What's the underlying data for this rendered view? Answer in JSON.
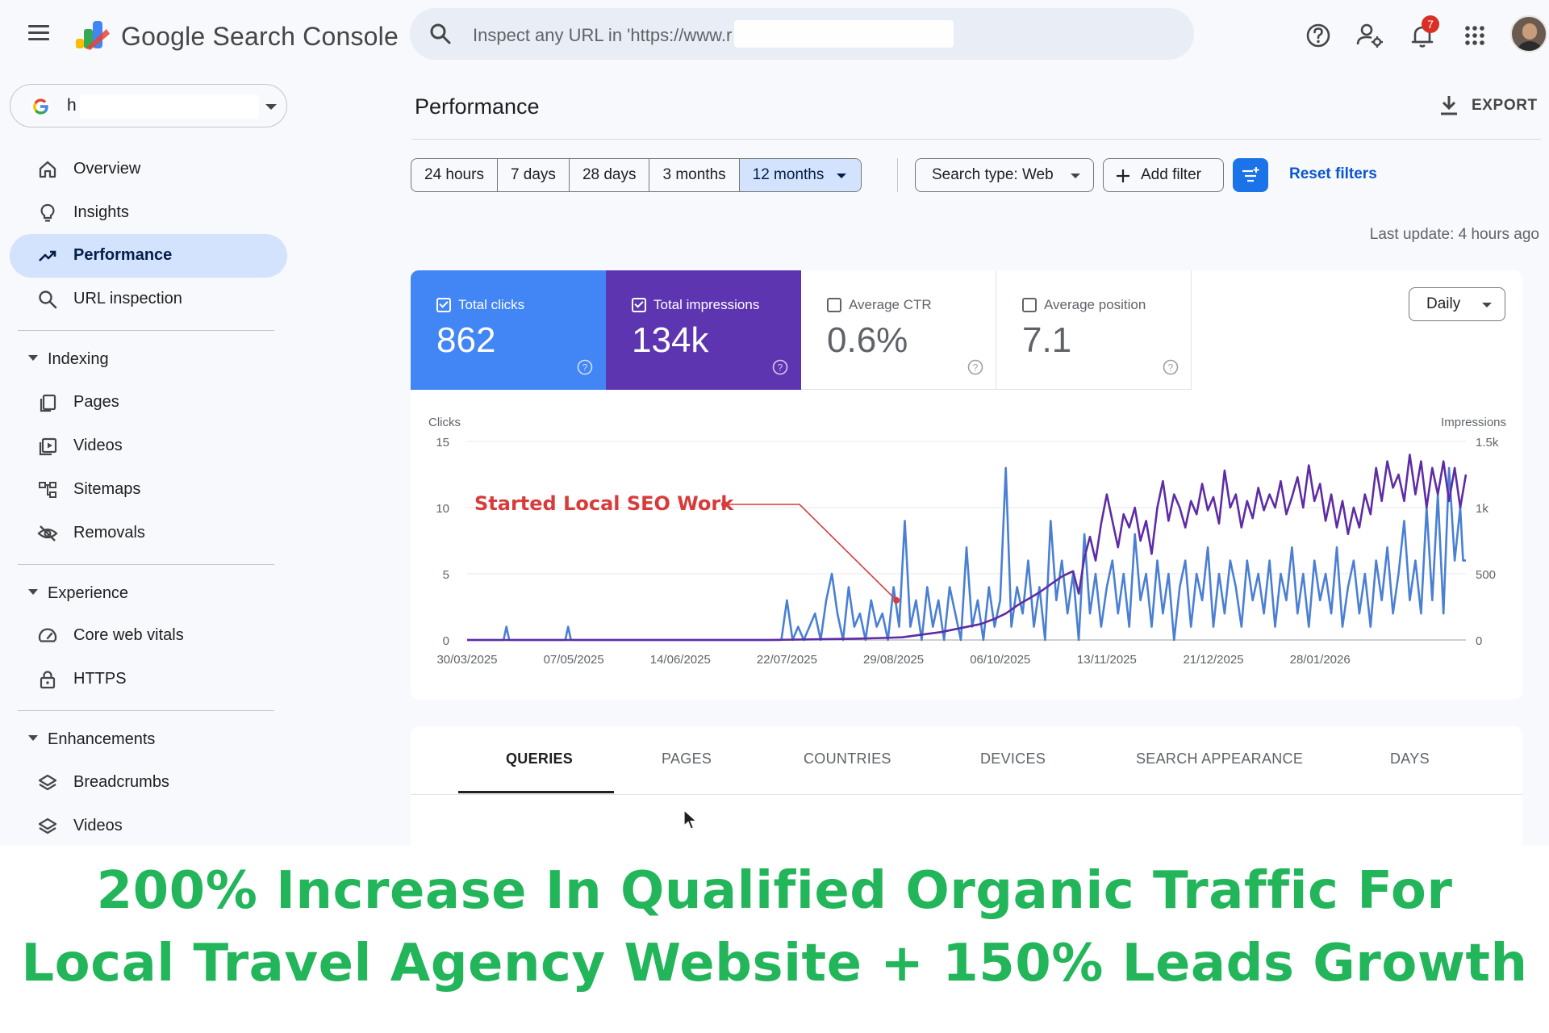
{
  "app": {
    "title": "Google Search Console",
    "search_placeholder": "Inspect any URL in 'https://www.r",
    "notification_count": "7"
  },
  "property": {
    "text": "h"
  },
  "sidebar": {
    "top_items": [
      {
        "label": "Overview",
        "icon": "home-icon"
      },
      {
        "label": "Insights",
        "icon": "lightbulb-icon"
      },
      {
        "label": "Performance",
        "icon": "trending-up-icon",
        "active": true
      },
      {
        "label": "URL inspection",
        "icon": "search-icon"
      }
    ],
    "sections": [
      {
        "title": "Indexing",
        "items": [
          {
            "label": "Pages",
            "icon": "pages-icon"
          },
          {
            "label": "Videos",
            "icon": "video-icon"
          },
          {
            "label": "Sitemaps",
            "icon": "sitemap-icon"
          },
          {
            "label": "Removals",
            "icon": "eye-off-icon"
          }
        ]
      },
      {
        "title": "Experience",
        "items": [
          {
            "label": "Core web vitals",
            "icon": "gauge-icon"
          },
          {
            "label": "HTTPS",
            "icon": "lock-icon"
          }
        ]
      },
      {
        "title": "Enhancements",
        "items": [
          {
            "label": "Breadcrumbs",
            "icon": "layers-icon"
          },
          {
            "label": "Videos",
            "icon": "layers-icon"
          }
        ]
      }
    ]
  },
  "main": {
    "page_title": "Performance",
    "export_label": "EXPORT",
    "ranges": [
      "24 hours",
      "7 days",
      "28 days",
      "3 months",
      "12 months"
    ],
    "selected_range": "12 months",
    "search_type": "Search type: Web",
    "add_filter": "Add filter",
    "reset_filters": "Reset filters",
    "last_update": "Last update: 4 hours ago",
    "granularity": "Daily"
  },
  "metrics": [
    {
      "label": "Total clicks",
      "value": "862",
      "checked": true,
      "color": "#4285f4"
    },
    {
      "label": "Total impressions",
      "value": "134k",
      "checked": true,
      "color": "#5e35b1"
    },
    {
      "label": "Average CTR",
      "value": "0.6%",
      "checked": false
    },
    {
      "label": "Average position",
      "value": "7.1",
      "checked": false
    }
  ],
  "chart_data": {
    "type": "line",
    "ylabel_left": "Clicks",
    "ylabel_right": "Impressions",
    "y_left_ticks": [
      "0",
      "5",
      "10",
      "15"
    ],
    "y_right_ticks": [
      "0",
      "500",
      "1k",
      "1.5k"
    ],
    "ylim_left": [
      0,
      15
    ],
    "ylim_right": [
      0,
      1500
    ],
    "x_ticks": [
      "30/03/2025",
      "07/05/2025",
      "14/06/2025",
      "22/07/2025",
      "29/08/2025",
      "06/10/2025",
      "13/11/2025",
      "21/12/2025",
      "28/01/2026"
    ],
    "x_range": [
      "2025-03-30",
      "2026-03-21"
    ],
    "annotation": {
      "text": "Started  Local SEO Work",
      "date": "2025-08-30",
      "value": 3
    },
    "grid": true,
    "series": [
      {
        "name": "Total clicks",
        "color": "#4a7fd4",
        "axis": "left",
        "points": [
          [
            "2025-03-30",
            0
          ],
          [
            "2025-04-12",
            0
          ],
          [
            "2025-04-13",
            1
          ],
          [
            "2025-04-14",
            0
          ],
          [
            "2025-05-04",
            0
          ],
          [
            "2025-05-05",
            1
          ],
          [
            "2025-05-06",
            0
          ],
          [
            "2025-07-20",
            0
          ],
          [
            "2025-07-22",
            3
          ],
          [
            "2025-07-24",
            0
          ],
          [
            "2025-07-26",
            1
          ],
          [
            "2025-07-28",
            0
          ],
          [
            "2025-07-30",
            1
          ],
          [
            "2025-08-01",
            2
          ],
          [
            "2025-08-03",
            0
          ],
          [
            "2025-08-05",
            3
          ],
          [
            "2025-08-07",
            5
          ],
          [
            "2025-08-09",
            2
          ],
          [
            "2025-08-11",
            0
          ],
          [
            "2025-08-13",
            4
          ],
          [
            "2025-08-15",
            1
          ],
          [
            "2025-08-17",
            2
          ],
          [
            "2025-08-19",
            0
          ],
          [
            "2025-08-21",
            3
          ],
          [
            "2025-08-23",
            1
          ],
          [
            "2025-08-25",
            2
          ],
          [
            "2025-08-27",
            0
          ],
          [
            "2025-08-29",
            4
          ],
          [
            "2025-08-31",
            1
          ],
          [
            "2025-09-02",
            9
          ],
          [
            "2025-09-04",
            1
          ],
          [
            "2025-09-06",
            3
          ],
          [
            "2025-09-08",
            0
          ],
          [
            "2025-09-10",
            4
          ],
          [
            "2025-09-12",
            1
          ],
          [
            "2025-09-14",
            3
          ],
          [
            "2025-09-16",
            0
          ],
          [
            "2025-09-18",
            4
          ],
          [
            "2025-09-20",
            2
          ],
          [
            "2025-09-22",
            0
          ],
          [
            "2025-09-24",
            7
          ],
          [
            "2025-09-26",
            1
          ],
          [
            "2025-09-28",
            3
          ],
          [
            "2025-09-30",
            0
          ],
          [
            "2025-10-02",
            4
          ],
          [
            "2025-10-04",
            1
          ],
          [
            "2025-10-06",
            3
          ],
          [
            "2025-10-08",
            13
          ],
          [
            "2025-10-10",
            1
          ],
          [
            "2025-10-12",
            4
          ],
          [
            "2025-10-14",
            2
          ],
          [
            "2025-10-16",
            6
          ],
          [
            "2025-10-18",
            1
          ],
          [
            "2025-10-20",
            4
          ],
          [
            "2025-10-22",
            0
          ],
          [
            "2025-10-24",
            9
          ],
          [
            "2025-10-26",
            3
          ],
          [
            "2025-10-28",
            6
          ],
          [
            "2025-10-30",
            2
          ],
          [
            "2025-11-01",
            5
          ],
          [
            "2025-11-03",
            0
          ],
          [
            "2025-11-05",
            8
          ],
          [
            "2025-11-07",
            2
          ],
          [
            "2025-11-09",
            5
          ],
          [
            "2025-11-11",
            1
          ],
          [
            "2025-11-13",
            4
          ],
          [
            "2025-11-15",
            6
          ],
          [
            "2025-11-17",
            2
          ],
          [
            "2025-11-19",
            5
          ],
          [
            "2025-11-21",
            1
          ],
          [
            "2025-11-23",
            8
          ],
          [
            "2025-11-25",
            3
          ],
          [
            "2025-11-27",
            5
          ],
          [
            "2025-11-29",
            1
          ],
          [
            "2025-12-01",
            6
          ],
          [
            "2025-12-03",
            2
          ],
          [
            "2025-12-05",
            5
          ],
          [
            "2025-12-07",
            0
          ],
          [
            "2025-12-09",
            4
          ],
          [
            "2025-12-11",
            6
          ],
          [
            "2025-12-13",
            1
          ],
          [
            "2025-12-15",
            5
          ],
          [
            "2025-12-17",
            3
          ],
          [
            "2025-12-19",
            7
          ],
          [
            "2025-12-21",
            1
          ],
          [
            "2025-12-23",
            5
          ],
          [
            "2025-12-25",
            2
          ],
          [
            "2025-12-27",
            6
          ],
          [
            "2025-12-29",
            4
          ],
          [
            "2025-12-31",
            1
          ],
          [
            "2026-01-02",
            6
          ],
          [
            "2026-01-04",
            3
          ],
          [
            "2026-01-06",
            5
          ],
          [
            "2026-01-08",
            2
          ],
          [
            "2026-01-10",
            6
          ],
          [
            "2026-01-12",
            1
          ],
          [
            "2026-01-14",
            5
          ],
          [
            "2026-01-16",
            3
          ],
          [
            "2026-01-18",
            7
          ],
          [
            "2026-01-20",
            2
          ],
          [
            "2026-01-22",
            5
          ],
          [
            "2026-01-24",
            1
          ],
          [
            "2026-01-26",
            6
          ],
          [
            "2026-01-28",
            3
          ],
          [
            "2026-01-30",
            5
          ],
          [
            "2026-02-01",
            2
          ],
          [
            "2026-02-03",
            7
          ],
          [
            "2026-02-05",
            1
          ],
          [
            "2026-02-07",
            4
          ],
          [
            "2026-02-09",
            6
          ],
          [
            "2026-02-11",
            2
          ],
          [
            "2026-02-13",
            5
          ],
          [
            "2026-02-15",
            1
          ],
          [
            "2026-02-17",
            6
          ],
          [
            "2026-02-19",
            3
          ],
          [
            "2026-02-21",
            7
          ],
          [
            "2026-02-23",
            2
          ],
          [
            "2026-02-25",
            5
          ],
          [
            "2026-02-27",
            9
          ],
          [
            "2026-03-01",
            3
          ],
          [
            "2026-03-03",
            6
          ],
          [
            "2026-03-05",
            2
          ],
          [
            "2026-03-07",
            10
          ],
          [
            "2026-03-09",
            3
          ],
          [
            "2026-03-11",
            11
          ],
          [
            "2026-03-13",
            2
          ],
          [
            "2026-03-15",
            13
          ],
          [
            "2026-03-17",
            6
          ],
          [
            "2026-03-19",
            10
          ],
          [
            "2026-03-20",
            6
          ],
          [
            "2026-03-21",
            6
          ]
        ]
      },
      {
        "name": "Total impressions",
        "color": "#5e2ca5",
        "axis": "right",
        "points": [
          [
            "2025-03-30",
            0
          ],
          [
            "2025-07-15",
            0
          ],
          [
            "2025-08-01",
            5
          ],
          [
            "2025-08-15",
            10
          ],
          [
            "2025-08-25",
            15
          ],
          [
            "2025-09-01",
            20
          ],
          [
            "2025-09-08",
            40
          ],
          [
            "2025-09-15",
            60
          ],
          [
            "2025-09-22",
            90
          ],
          [
            "2025-09-29",
            120
          ],
          [
            "2025-10-04",
            160
          ],
          [
            "2025-10-08",
            200
          ],
          [
            "2025-10-12",
            260
          ],
          [
            "2025-10-16",
            310
          ],
          [
            "2025-10-20",
            360
          ],
          [
            "2025-10-24",
            420
          ],
          [
            "2025-10-28",
            480
          ],
          [
            "2025-11-01",
            520
          ],
          [
            "2025-11-03",
            350
          ],
          [
            "2025-11-05",
            620
          ],
          [
            "2025-11-07",
            780
          ],
          [
            "2025-11-09",
            600
          ],
          [
            "2025-11-11",
            880
          ],
          [
            "2025-11-13",
            1100
          ],
          [
            "2025-11-15",
            900
          ],
          [
            "2025-11-17",
            700
          ],
          [
            "2025-11-19",
            950
          ],
          [
            "2025-11-21",
            850
          ],
          [
            "2025-11-23",
            1000
          ],
          [
            "2025-11-25",
            750
          ],
          [
            "2025-11-27",
            900
          ],
          [
            "2025-11-29",
            650
          ],
          [
            "2025-12-01",
            1000
          ],
          [
            "2025-12-03",
            1200
          ],
          [
            "2025-12-05",
            900
          ],
          [
            "2025-12-07",
            1100
          ],
          [
            "2025-12-09",
            1000
          ],
          [
            "2025-12-11",
            850
          ],
          [
            "2025-12-13",
            1050
          ],
          [
            "2025-12-15",
            950
          ],
          [
            "2025-12-17",
            1180
          ],
          [
            "2025-12-19",
            980
          ],
          [
            "2025-12-21",
            1080
          ],
          [
            "2025-12-23",
            880
          ],
          [
            "2025-12-25",
            1280
          ],
          [
            "2025-12-27",
            1000
          ],
          [
            "2025-12-29",
            1100
          ],
          [
            "2025-12-31",
            850
          ],
          [
            "2026-01-02",
            1050
          ],
          [
            "2026-01-04",
            920
          ],
          [
            "2026-01-06",
            1150
          ],
          [
            "2026-01-08",
            980
          ],
          [
            "2026-01-10",
            1100
          ],
          [
            "2026-01-12",
            1000
          ],
          [
            "2026-01-14",
            1200
          ],
          [
            "2026-01-16",
            950
          ],
          [
            "2026-01-18",
            1080
          ],
          [
            "2026-01-20",
            1230
          ],
          [
            "2026-01-22",
            1000
          ],
          [
            "2026-01-24",
            1320
          ],
          [
            "2026-01-26",
            1050
          ],
          [
            "2026-01-28",
            1180
          ],
          [
            "2026-01-30",
            900
          ],
          [
            "2026-02-01",
            1100
          ],
          [
            "2026-02-03",
            850
          ],
          [
            "2026-02-05",
            1050
          ],
          [
            "2026-02-07",
            800
          ],
          [
            "2026-02-09",
            1000
          ],
          [
            "2026-02-11",
            850
          ],
          [
            "2026-02-13",
            1100
          ],
          [
            "2026-02-15",
            950
          ],
          [
            "2026-02-17",
            1300
          ],
          [
            "2026-02-19",
            1050
          ],
          [
            "2026-02-21",
            1350
          ],
          [
            "2026-02-23",
            1150
          ],
          [
            "2026-02-25",
            1250
          ],
          [
            "2026-02-27",
            1050
          ],
          [
            "2026-03-01",
            1400
          ],
          [
            "2026-03-03",
            1100
          ],
          [
            "2026-03-05",
            1350
          ],
          [
            "2026-03-07",
            1000
          ],
          [
            "2026-03-09",
            1300
          ],
          [
            "2026-03-11",
            1100
          ],
          [
            "2026-03-13",
            1350
          ],
          [
            "2026-03-15",
            1050
          ],
          [
            "2026-03-17",
            1300
          ],
          [
            "2026-03-19",
            1000
          ],
          [
            "2026-03-21",
            1250
          ]
        ]
      }
    ]
  },
  "tabs": [
    "QUERIES",
    "PAGES",
    "COUNTRIES",
    "DEVICES",
    "SEARCH APPEARANCE",
    "DAYS"
  ],
  "active_tab": "QUERIES",
  "caption": {
    "line1": "200% Increase In Qualified Organic Traffic For",
    "line2": "Local Travel Agency Website + 150% Leads Growth",
    "color": "#22b55a"
  }
}
